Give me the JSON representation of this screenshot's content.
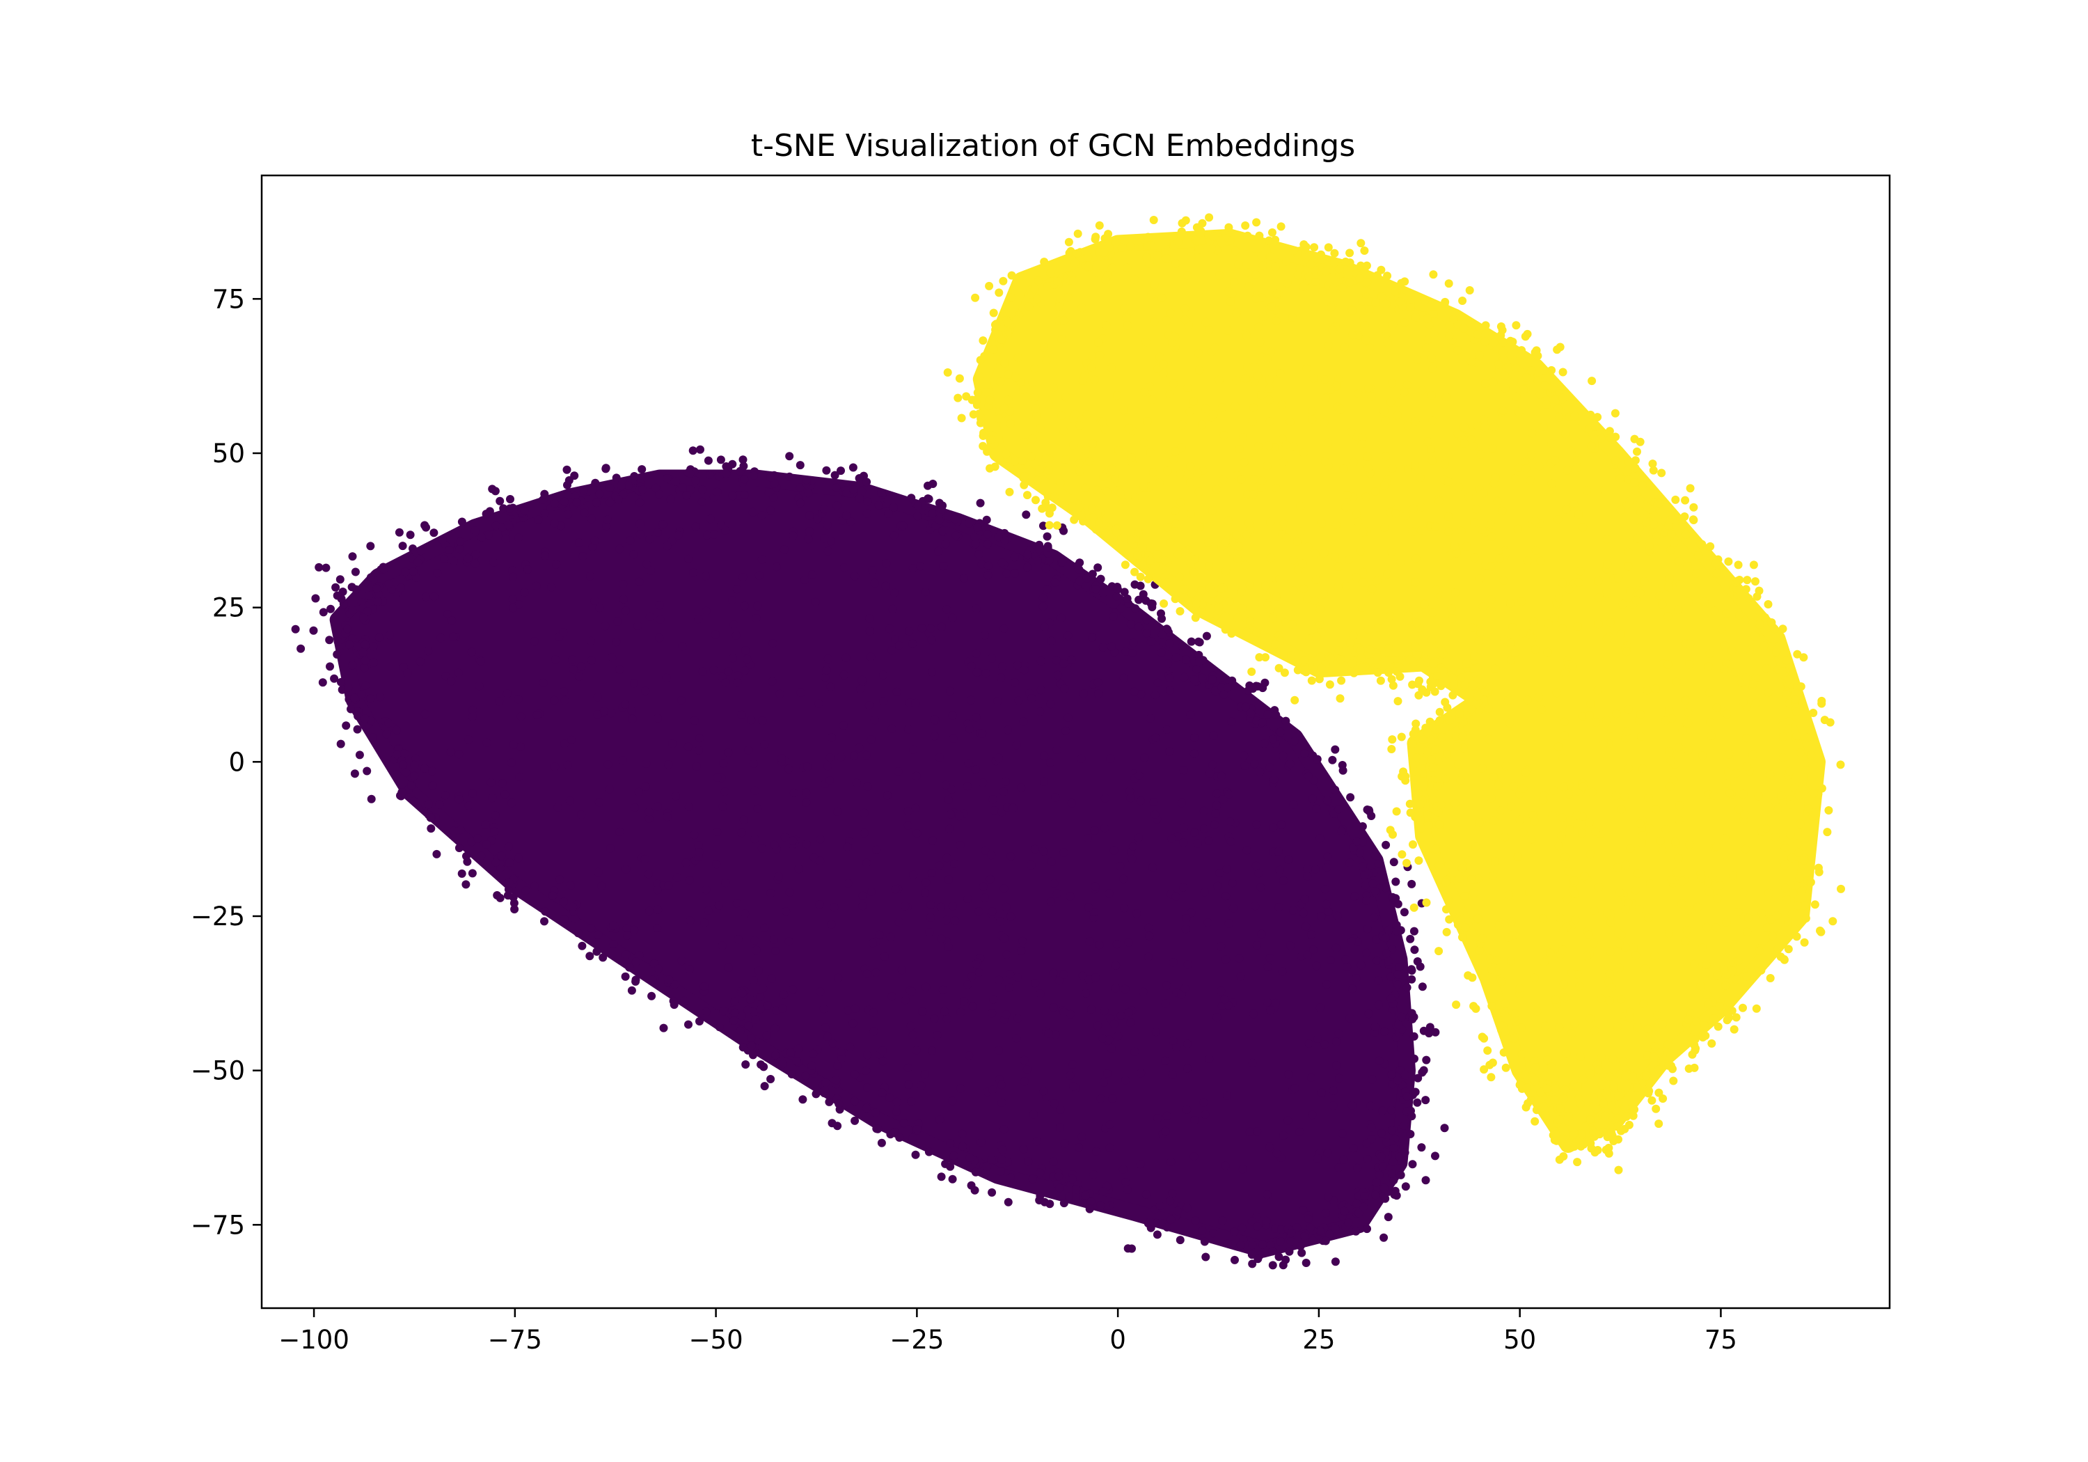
{
  "chart_data": {
    "type": "scatter",
    "title": "t-SNE Visualization of GCN Embeddings",
    "xlabel": "",
    "ylabel": "",
    "xlim": [
      -106.5,
      96
    ],
    "ylim": [
      -88.5,
      95
    ],
    "x_ticks": [
      -100,
      -75,
      -50,
      -25,
      0,
      25,
      50,
      75
    ],
    "y_ticks": [
      -75,
      -50,
      -25,
      0,
      25,
      50,
      75
    ],
    "x_tick_labels": [
      "−100",
      "−75",
      "−50",
      "−25",
      "0",
      "25",
      "50",
      "75"
    ],
    "y_tick_labels": [
      "−75",
      "−50",
      "−25",
      "0",
      "25",
      "50",
      "75"
    ],
    "grid": false,
    "legend": "none",
    "series": [
      {
        "color": "#440154",
        "cluster_outline": [
          [
            -97,
            23
          ],
          [
            -92,
            30
          ],
          [
            -80,
            38
          ],
          [
            -68,
            43
          ],
          [
            -57,
            46
          ],
          [
            -45,
            46
          ],
          [
            -32,
            44
          ],
          [
            -20,
            39
          ],
          [
            -8,
            33
          ],
          [
            2,
            24
          ],
          [
            12,
            14
          ],
          [
            22,
            4
          ],
          [
            32,
            -16
          ],
          [
            35,
            -32
          ],
          [
            36,
            -50
          ],
          [
            35,
            -65
          ],
          [
            30,
            -75
          ],
          [
            18,
            -79
          ],
          [
            2,
            -73
          ],
          [
            -15,
            -67
          ],
          [
            -30,
            -58
          ],
          [
            -45,
            -46
          ],
          [
            -60,
            -33
          ],
          [
            -75,
            -20
          ],
          [
            -88,
            -5
          ],
          [
            -95,
            10
          ]
        ],
        "dense_cores": [
          [
            -90,
            26
          ],
          [
            -40,
            10
          ],
          [
            20,
            -65
          ]
        ]
      },
      {
        "color": "#fde725",
        "cluster_outline": [
          [
            -17,
            62
          ],
          [
            -12,
            78
          ],
          [
            0,
            84
          ],
          [
            14,
            85
          ],
          [
            28,
            80
          ],
          [
            42,
            72
          ],
          [
            52,
            64
          ],
          [
            62,
            50
          ],
          [
            72,
            35
          ],
          [
            82,
            20
          ],
          [
            87,
            0
          ],
          [
            85,
            -25
          ],
          [
            75,
            -40
          ],
          [
            68,
            -48
          ],
          [
            62,
            -58
          ],
          [
            56,
            -62
          ],
          [
            50,
            -50
          ],
          [
            46,
            -35
          ],
          [
            38,
            -12
          ],
          [
            37,
            3
          ],
          [
            45,
            10
          ],
          [
            38,
            16
          ],
          [
            25,
            15
          ],
          [
            10,
            25
          ],
          [
            -4,
            40
          ],
          [
            -15,
            50
          ]
        ],
        "dense_cores": [
          [
            -4,
            62
          ],
          [
            48,
            22
          ],
          [
            58,
            -20
          ],
          [
            57,
            -52
          ]
        ]
      }
    ]
  }
}
